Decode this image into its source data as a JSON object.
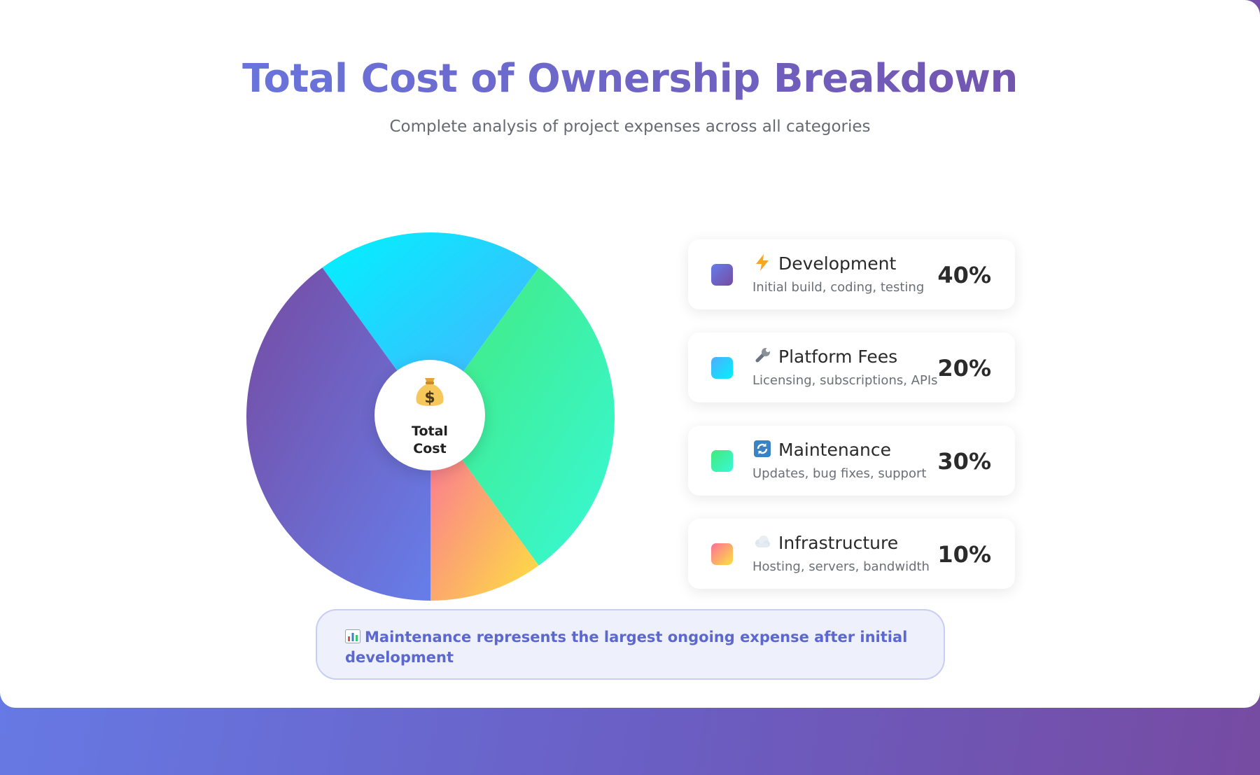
{
  "header": {
    "title": "Total Cost of Ownership Breakdown",
    "subtitle": "Complete analysis of project expenses across all categories"
  },
  "center": {
    "icon": "money-bag-icon",
    "label": "Total Cost"
  },
  "insight": {
    "icon": "bar-chart-icon",
    "text": "Maintenance represents the largest ongoing expense after initial development"
  },
  "legend": [
    {
      "icon": "lightning-icon",
      "name": "Development",
      "desc": "Initial build, coding, testing",
      "pct": "40%"
    },
    {
      "icon": "wrench-icon",
      "name": "Platform Fees",
      "desc": "Licensing, subscriptions, APIs",
      "pct": "20%"
    },
    {
      "icon": "refresh-icon",
      "name": "Maintenance",
      "desc": "Updates, bug fixes, support",
      "pct": "30%"
    },
    {
      "icon": "cloud-icon",
      "name": "Infrastructure",
      "desc": "Hosting, servers, bandwidth",
      "pct": "10%"
    }
  ],
  "chart_data": {
    "type": "pie",
    "title": "Total Cost of Ownership Breakdown",
    "slices": [
      {
        "label": "Development",
        "value": 40,
        "colors": [
          "#764ba2",
          "#667eea"
        ]
      },
      {
        "label": "Platform Fees",
        "value": 20,
        "colors": [
          "#00f2fe",
          "#4facfe"
        ]
      },
      {
        "label": "Maintenance",
        "value": 30,
        "colors": [
          "#43e97b",
          "#38f9d7"
        ]
      },
      {
        "label": "Infrastructure",
        "value": 10,
        "colors": [
          "#fa709a",
          "#fee140"
        ]
      }
    ],
    "draw_order": [
      "Platform Fees",
      "Maintenance",
      "Infrastructure",
      "Development"
    ]
  }
}
